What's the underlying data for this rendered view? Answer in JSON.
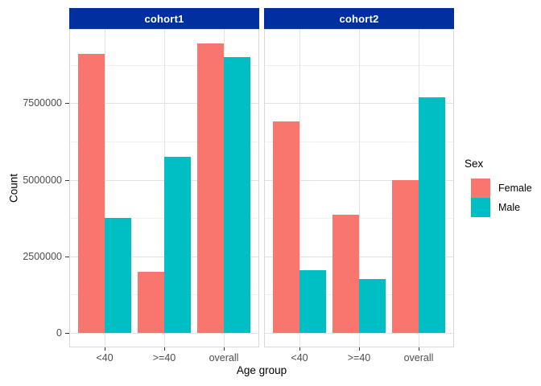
{
  "chart_data": {
    "type": "bar",
    "title": "",
    "xlabel": "Age group",
    "ylabel": "Count",
    "legend_title": "Sex",
    "legend_position": "right",
    "grid": true,
    "categories": [
      "<40",
      ">=40",
      "overall"
    ],
    "facets": [
      {
        "label": "cohort1",
        "series": [
          {
            "name": "Female",
            "values": [
              9100000,
              2000000,
              9450000
            ]
          },
          {
            "name": "Male",
            "values": [
              3750000,
              5750000,
              9000000
            ]
          }
        ]
      },
      {
        "label": "cohort2",
        "series": [
          {
            "name": "Female",
            "values": [
              6900000,
              3850000,
              5000000
            ]
          },
          {
            "name": "Male",
            "values": [
              2050000,
              1750000,
              7700000
            ]
          }
        ]
      }
    ],
    "series_colors": {
      "Female": "#F8766D",
      "Male": "#00BFC4"
    },
    "y_ticks": [
      0,
      2500000,
      5000000,
      7500000
    ],
    "y_tick_labels": [
      "0",
      "2500000",
      "5000000",
      "7500000"
    ],
    "y_minor_ticks": [
      1250000,
      3750000,
      6250000,
      8750000
    ],
    "ylim": [
      -472500,
      9922500
    ],
    "colors": {
      "strip_fill": "#0030A0",
      "strip_text": "#FFFFFF",
      "panel_border": "#D9D9D9",
      "grid_major": "#E2E2E2",
      "grid_minor": "#F0F0F0",
      "tick_text": "#4D4D4D",
      "tick_mark": "#333333"
    }
  }
}
